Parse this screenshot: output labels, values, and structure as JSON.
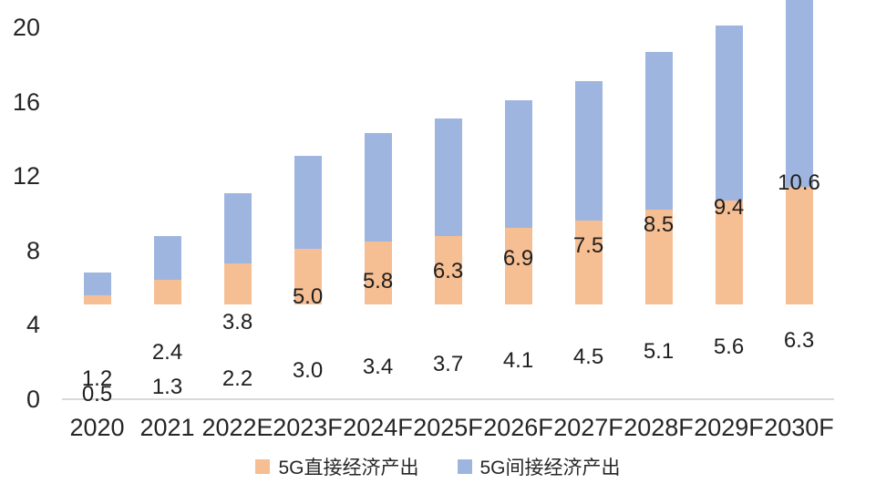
{
  "chart_data": {
    "type": "bar",
    "stacked": true,
    "title": "",
    "xlabel": "",
    "ylabel": "",
    "categories": [
      "2020",
      "2021",
      "2022E",
      "2023F",
      "2024F",
      "2025F",
      "2026F",
      "2027F",
      "2028F",
      "2029F",
      "2030F"
    ],
    "series": [
      {
        "name": "5G直接经济产出",
        "color": "#F6BE93",
        "values": [
          0.5,
          1.3,
          2.2,
          3.0,
          3.4,
          3.7,
          4.1,
          4.5,
          5.1,
          5.6,
          6.3
        ]
      },
      {
        "name": "5G间接经济产出",
        "color": "#9EB5E0",
        "values": [
          1.2,
          2.4,
          3.8,
          5.0,
          5.8,
          6.3,
          6.9,
          7.5,
          8.5,
          9.4,
          10.6
        ]
      }
    ],
    "y_ticks": [
      0,
      4,
      8,
      12,
      16,
      20
    ],
    "ylim": [
      0,
      20
    ],
    "grid": false,
    "legend_position": "bottom",
    "data_labels": "one-decimal, centered in each segment",
    "colors": {
      "axis_line": "#d9d9d9",
      "label_text": "#262626",
      "background": "#ffffff"
    }
  }
}
